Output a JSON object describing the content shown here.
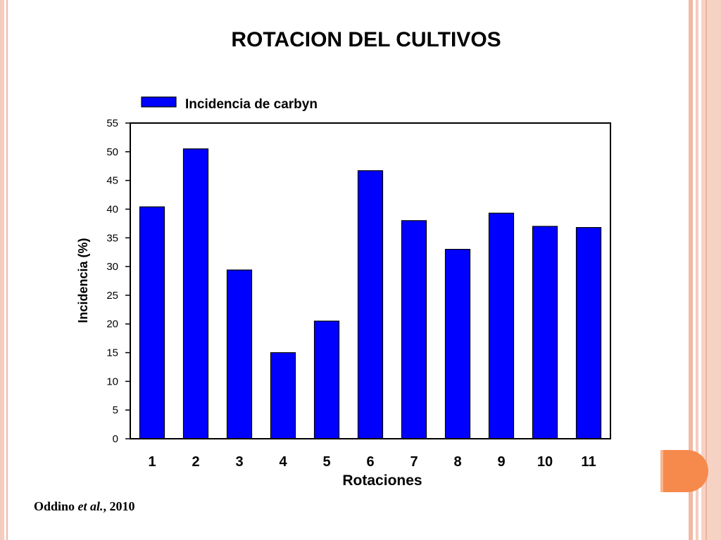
{
  "slide": {
    "title": "ROTACION DEL CULTIVOS",
    "citation_author": "Oddino",
    "citation_etal": "et al.",
    "citation_rest": ", 2010"
  },
  "colors": {
    "bar": "#0000ff",
    "frame": "#f4cdbf",
    "accent": "#f58a4c"
  },
  "chart_data": {
    "type": "bar",
    "categories": [
      "1",
      "2",
      "3",
      "4",
      "5",
      "6",
      "7",
      "8",
      "9",
      "10",
      "11"
    ],
    "series": [
      {
        "name": "Incidencia de carbyn",
        "values": [
          40.4,
          50.5,
          29.4,
          15.0,
          20.5,
          46.7,
          38.0,
          33.0,
          39.3,
          37.0,
          36.8
        ]
      }
    ],
    "title": "",
    "xlabel": "Rotaciones",
    "ylabel": "Incidencia (%)",
    "ylim": [
      0,
      55
    ],
    "yticks": [
      0,
      5,
      10,
      15,
      20,
      25,
      30,
      35,
      40,
      45,
      50,
      55
    ],
    "grid": false,
    "legend": "top-left"
  }
}
